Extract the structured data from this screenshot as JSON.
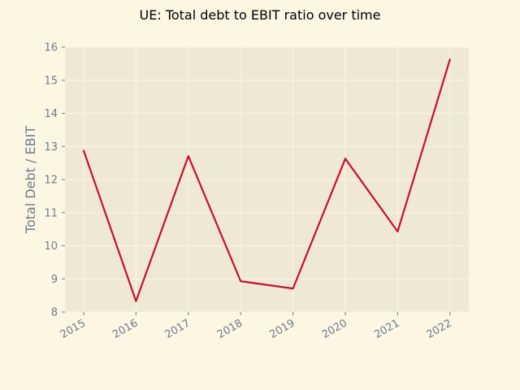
{
  "chart_data": {
    "type": "line",
    "title": "UE: Total debt to EBIT ratio over time",
    "xlabel": "",
    "ylabel": "Total Debt / EBIT",
    "categories": [
      "2015",
      "2016",
      "2017",
      "2018",
      "2019",
      "2020",
      "2021",
      "2022"
    ],
    "series": [
      {
        "values": [
          12.87,
          8.33,
          12.71,
          8.93,
          8.71,
          12.63,
          10.43,
          15.63
        ]
      }
    ],
    "ylim": [
      8,
      16
    ],
    "yticks": [
      8,
      9,
      10,
      11,
      12,
      13,
      14,
      15,
      16
    ],
    "grid": true,
    "legend": "none",
    "colors": {
      "background": "#fdf6e3",
      "plot_background": "#efe8d5",
      "grid": "#fdf6e3",
      "line": "#c8102e",
      "tick_text": "#6b7b8c"
    }
  }
}
